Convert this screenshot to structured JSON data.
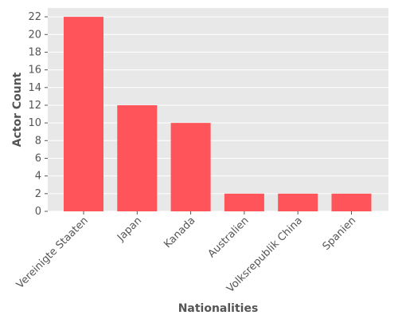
{
  "chart_data": {
    "type": "bar",
    "title": "",
    "xlabel": "Nationalities",
    "ylabel": "Actor Count",
    "categories": [
      "Vereinigte Staaten",
      "Japan",
      "Kanada",
      "Australien",
      "Volksrepublik China",
      "Spanien"
    ],
    "values": [
      22,
      12,
      10,
      2,
      2,
      2
    ],
    "ylim": [
      0,
      23
    ],
    "yticks": [
      0,
      2,
      4,
      6,
      8,
      10,
      12,
      14,
      16,
      18,
      20,
      22
    ],
    "grid": true,
    "legend": "none",
    "colors": {
      "bar": "#ff5459",
      "plot_background": "#e8e8e8",
      "grid": "#ffffff",
      "text": "#555555"
    }
  }
}
